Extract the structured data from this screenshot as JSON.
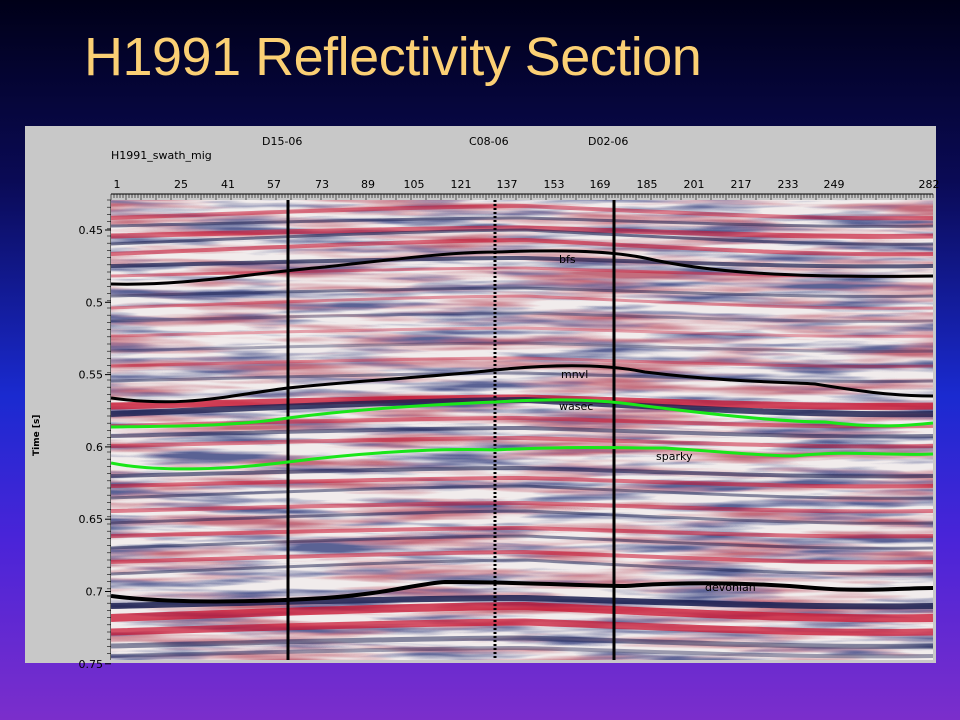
{
  "slide": {
    "title": "H1991 Reflectivity Section"
  },
  "panel": {
    "section_name": "H1991_swath_mig",
    "well_labels": [
      "D15-06",
      "C08-06",
      "D02-06"
    ],
    "trace_ticks": [
      "1",
      "25",
      "41",
      "57",
      "73",
      "89",
      "105",
      "121",
      "137",
      "153",
      "169",
      "185",
      "201",
      "217",
      "233",
      "249",
      "282"
    ],
    "time_axis_label": "Time [s]",
    "time_ticks": [
      "0.45",
      "0.5",
      "0.55",
      "0.6",
      "0.65",
      "0.7",
      "0.75"
    ],
    "horizon_labels": [
      "bfs",
      "mnvl",
      "wasec",
      "sparky",
      "devonian"
    ],
    "colors": {
      "black_horizon": "#000000",
      "green_horizon": "#19e619",
      "positive_amp": "#c8102e",
      "negative_amp": "#1a1f50"
    }
  }
}
